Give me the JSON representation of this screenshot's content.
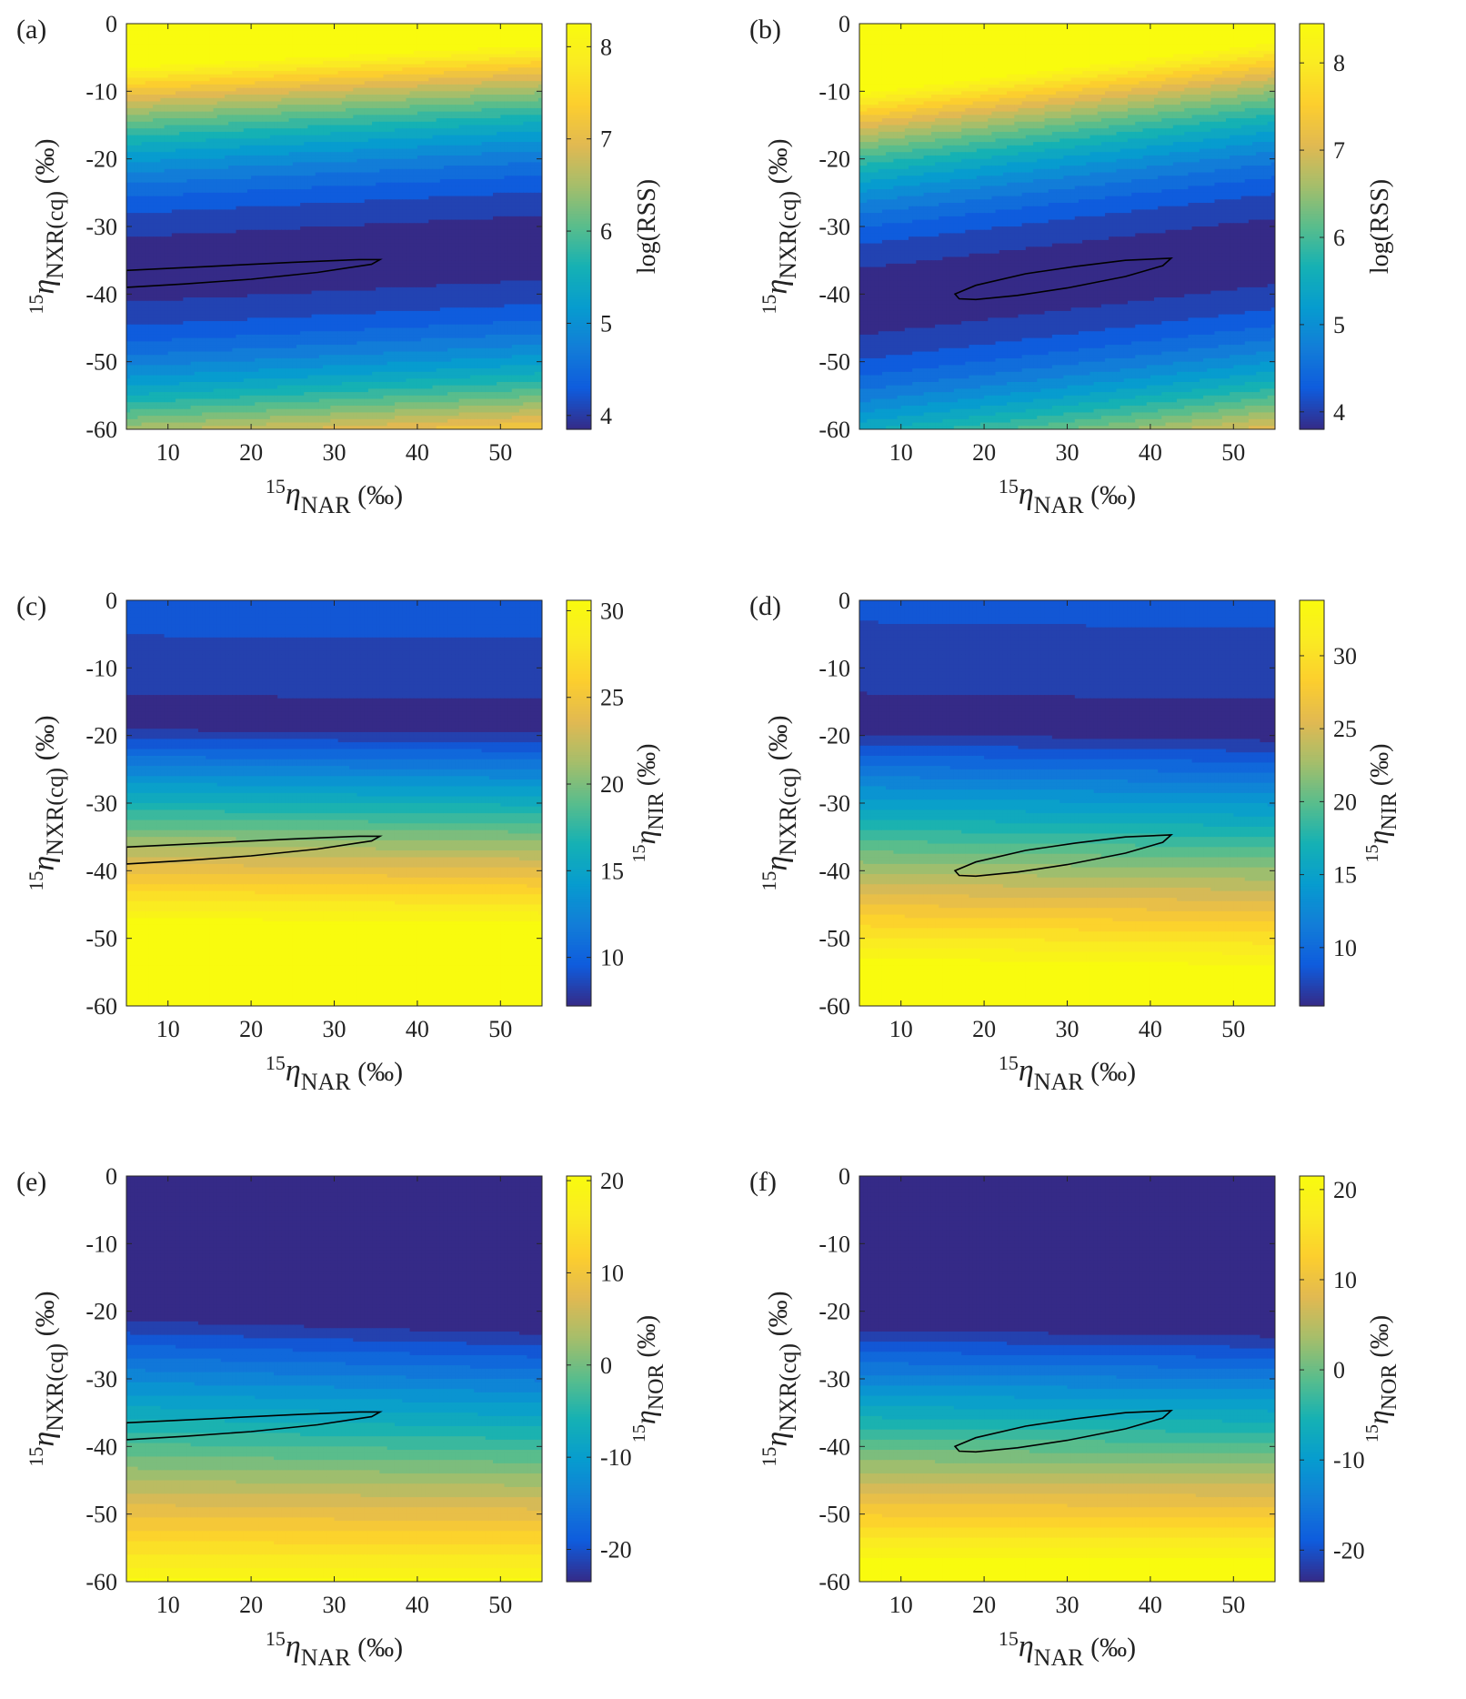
{
  "chart_data": [
    {
      "panel_label": "(a)",
      "type": "heatmap",
      "xlabel_pre": "15",
      "xlabel_sym": "η",
      "xlabel_sub": "NAR",
      "xlabel_unit": " (‰)",
      "ylabel_pre": "15",
      "ylabel_sym": "η",
      "ylabel_sub": "NXR(cq)",
      "ylabel_unit": " (‰)",
      "x_ticks": [
        "10",
        "20",
        "30",
        "40",
        "50"
      ],
      "y_ticks": [
        "0",
        "-10",
        "-20",
        "-30",
        "-40",
        "-50",
        "-60"
      ],
      "xlim": [
        5,
        55
      ],
      "ylim": [
        -60,
        0
      ],
      "colorbar_label": "log(RSS)",
      "colorbar_ticks": [
        "4",
        "5",
        "6",
        "7",
        "8"
      ],
      "colorbar_range": [
        3.85,
        8.25
      ],
      "field": {
        "kind": "quad",
        "a": 0.0048,
        "b": 0.065,
        "x0": 5,
        "y0": -36.4,
        "vmin": 3.85,
        "pow": 0.5
      },
      "levels": 20,
      "contour": [
        [
          5,
          -36.5
        ],
        [
          15,
          -35.9
        ],
        [
          25,
          -35.3
        ],
        [
          33,
          -34.9
        ],
        [
          35.5,
          -34.9
        ],
        [
          34.5,
          -35.6
        ],
        [
          28,
          -36.8
        ],
        [
          20,
          -37.8
        ],
        [
          12,
          -38.5
        ],
        [
          5,
          -39
        ]
      ]
    },
    {
      "panel_label": "(b)",
      "type": "heatmap",
      "xlabel_pre": "15",
      "xlabel_sym": "η",
      "xlabel_sub": "NAR",
      "xlabel_unit": " (‰)",
      "ylabel_pre": "15",
      "ylabel_sym": "η",
      "ylabel_sub": "NXR(cq)",
      "ylabel_unit": " (‰)",
      "x_ticks": [
        "10",
        "20",
        "30",
        "40",
        "50"
      ],
      "y_ticks": [
        "0",
        "-10",
        "-20",
        "-30",
        "-40",
        "-50",
        "-60"
      ],
      "xlim": [
        5,
        55
      ],
      "ylim": [
        -60,
        0
      ],
      "colorbar_label": "log(RSS)",
      "colorbar_ticks": [
        "4",
        "5",
        "6",
        "7",
        "8"
      ],
      "colorbar_range": [
        3.8,
        8.45
      ],
      "field": {
        "kind": "quad",
        "a": 0.0048,
        "b": 0.15,
        "x0": 29.5,
        "y0": -37.5,
        "vmin": 3.8,
        "pow": 0.5
      },
      "levels": 20,
      "contour": [
        [
          16.5,
          -40
        ],
        [
          19,
          -38.7
        ],
        [
          25,
          -37
        ],
        [
          31,
          -35.9
        ],
        [
          37,
          -35
        ],
        [
          42.5,
          -34.7
        ],
        [
          41.5,
          -35.8
        ],
        [
          37,
          -37.4
        ],
        [
          30,
          -39.1
        ],
        [
          24,
          -40.2
        ],
        [
          19,
          -40.8
        ],
        [
          17,
          -40.7
        ]
      ]
    },
    {
      "panel_label": "(c)",
      "type": "heatmap",
      "xlabel_pre": "15",
      "xlabel_sym": "η",
      "xlabel_sub": "NAR",
      "xlabel_unit": " (‰)",
      "ylabel_pre": "15",
      "ylabel_sym": "η",
      "ylabel_sub": "NXR(cq)",
      "ylabel_unit": " (‰)",
      "x_ticks": [
        "10",
        "20",
        "30",
        "40",
        "50"
      ],
      "y_ticks": [
        "0",
        "-10",
        "-20",
        "-30",
        "-40",
        "-50",
        "-60"
      ],
      "xlim": [
        5,
        55
      ],
      "ylim": [
        -60,
        0
      ],
      "colorbar_label_pre": "15",
      "colorbar_label_sym": "η",
      "colorbar_label_sub": "NIR",
      "colorbar_label_unit": " (‰)",
      "colorbar_ticks": [
        "10",
        "15",
        "20",
        "25",
        "30"
      ],
      "colorbar_range": [
        7.2,
        30.6
      ],
      "field": {
        "kind": "nir",
        "vmin": 7.2,
        "ycA": -18.5,
        "ycB": -19.0,
        "m1": 0.8,
        "m2": 0.12,
        "k1": 0.3,
        "k2": 0.05
      },
      "levels": 22,
      "contour": [
        [
          5,
          -36.5
        ],
        [
          15,
          -35.9
        ],
        [
          25,
          -35.3
        ],
        [
          33,
          -34.9
        ],
        [
          35.5,
          -34.9
        ],
        [
          34.5,
          -35.6
        ],
        [
          28,
          -36.8
        ],
        [
          20,
          -37.8
        ],
        [
          12,
          -38.5
        ],
        [
          5,
          -39
        ]
      ]
    },
    {
      "panel_label": "(d)",
      "type": "heatmap",
      "xlabel_pre": "15",
      "xlabel_sym": "η",
      "xlabel_sub": "NAR",
      "xlabel_unit": " (‰)",
      "ylabel_pre": "15",
      "ylabel_sym": "η",
      "ylabel_sub": "NXR(cq)",
      "ylabel_unit": " (‰)",
      "x_ticks": [
        "10",
        "20",
        "30",
        "40",
        "50"
      ],
      "y_ticks": [
        "0",
        "-10",
        "-20",
        "-30",
        "-40",
        "-50",
        "-60"
      ],
      "xlim": [
        5,
        55
      ],
      "ylim": [
        -60,
        0
      ],
      "colorbar_label_pre": "15",
      "colorbar_label_sym": "η",
      "colorbar_label_sub": "NIR",
      "colorbar_label_unit": " (‰)",
      "colorbar_ticks": [
        "10",
        "15",
        "20",
        "25",
        "30"
      ],
      "colorbar_range": [
        6.0,
        33.8
      ],
      "field": {
        "kind": "nir",
        "vmin": 6.0,
        "ycA": -19.0,
        "ycB": -20.0,
        "m1": 0.8,
        "m2": 0.12,
        "k1": 0.3,
        "k2": 0.05
      },
      "levels": 22,
      "contour": [
        [
          16.5,
          -40
        ],
        [
          19,
          -38.7
        ],
        [
          25,
          -37
        ],
        [
          31,
          -35.9
        ],
        [
          37,
          -35
        ],
        [
          42.5,
          -34.7
        ],
        [
          41.5,
          -35.8
        ],
        [
          37,
          -37.4
        ],
        [
          30,
          -39.1
        ],
        [
          24,
          -40.2
        ],
        [
          19,
          -40.8
        ],
        [
          17,
          -40.7
        ]
      ]
    },
    {
      "panel_label": "(e)",
      "type": "heatmap",
      "xlabel_pre": "15",
      "xlabel_sym": "η",
      "xlabel_sub": "NAR",
      "xlabel_unit": " (‰)",
      "ylabel_pre": "15",
      "ylabel_sym": "η",
      "ylabel_sub": "NXR(cq)",
      "ylabel_unit": " (‰)",
      "x_ticks": [
        "10",
        "20",
        "30",
        "40",
        "50"
      ],
      "y_ticks": [
        "0",
        "-10",
        "-20",
        "-30",
        "-40",
        "-50",
        "-60"
      ],
      "xlim": [
        5,
        55
      ],
      "ylim": [
        -60,
        0
      ],
      "colorbar_label_pre": "15",
      "colorbar_label_sym": "η",
      "colorbar_label_sub": "NOR",
      "colorbar_label_unit": " (‰)",
      "colorbar_ticks": [
        "-20",
        "-10",
        "0",
        "10",
        "20"
      ],
      "colorbar_range": [
        -23.5,
        20.5
      ],
      "field": {
        "kind": "nor",
        "vmin": -23.5,
        "vmax": 20.5,
        "ytA": -20.5,
        "ytB": -22.5,
        "yb": -60.5
      },
      "levels": 22,
      "contour": [
        [
          5,
          -36.5
        ],
        [
          15,
          -35.9
        ],
        [
          25,
          -35.3
        ],
        [
          33,
          -34.9
        ],
        [
          35.5,
          -34.9
        ],
        [
          34.5,
          -35.6
        ],
        [
          28,
          -36.8
        ],
        [
          20,
          -37.8
        ],
        [
          12,
          -38.5
        ],
        [
          5,
          -39
        ]
      ]
    },
    {
      "panel_label": "(f)",
      "type": "heatmap",
      "xlabel_pre": "15",
      "xlabel_sym": "η",
      "xlabel_sub": "NAR",
      "xlabel_unit": " (‰)",
      "ylabel_pre": "15",
      "ylabel_sym": "η",
      "ylabel_sub": "NXR(cq)",
      "ylabel_unit": " (‰)",
      "x_ticks": [
        "10",
        "20",
        "30",
        "40",
        "50"
      ],
      "y_ticks": [
        "0",
        "-10",
        "-20",
        "-30",
        "-40",
        "-50",
        "-60"
      ],
      "xlim": [
        5,
        55
      ],
      "ylim": [
        -60,
        0
      ],
      "colorbar_label_pre": "15",
      "colorbar_label_sym": "η",
      "colorbar_label_sub": "NOR",
      "colorbar_label_unit": " (‰)",
      "colorbar_ticks": [
        "-20",
        "-10",
        "0",
        "10",
        "20"
      ],
      "colorbar_range": [
        -23.5,
        21.5
      ],
      "field": {
        "kind": "nor",
        "vmin": -23.5,
        "vmax": 21.5,
        "ytA": -22.0,
        "ytB": -23.0,
        "yb": -57.5
      },
      "levels": 22,
      "contour": [
        [
          16.5,
          -40
        ],
        [
          19,
          -38.7
        ],
        [
          25,
          -37
        ],
        [
          31,
          -35.9
        ],
        [
          37,
          -35
        ],
        [
          42.5,
          -34.7
        ],
        [
          41.5,
          -35.8
        ],
        [
          37,
          -37.4
        ],
        [
          30,
          -39.1
        ],
        [
          24,
          -40.2
        ],
        [
          19,
          -40.8
        ],
        [
          17,
          -40.7
        ]
      ]
    }
  ]
}
